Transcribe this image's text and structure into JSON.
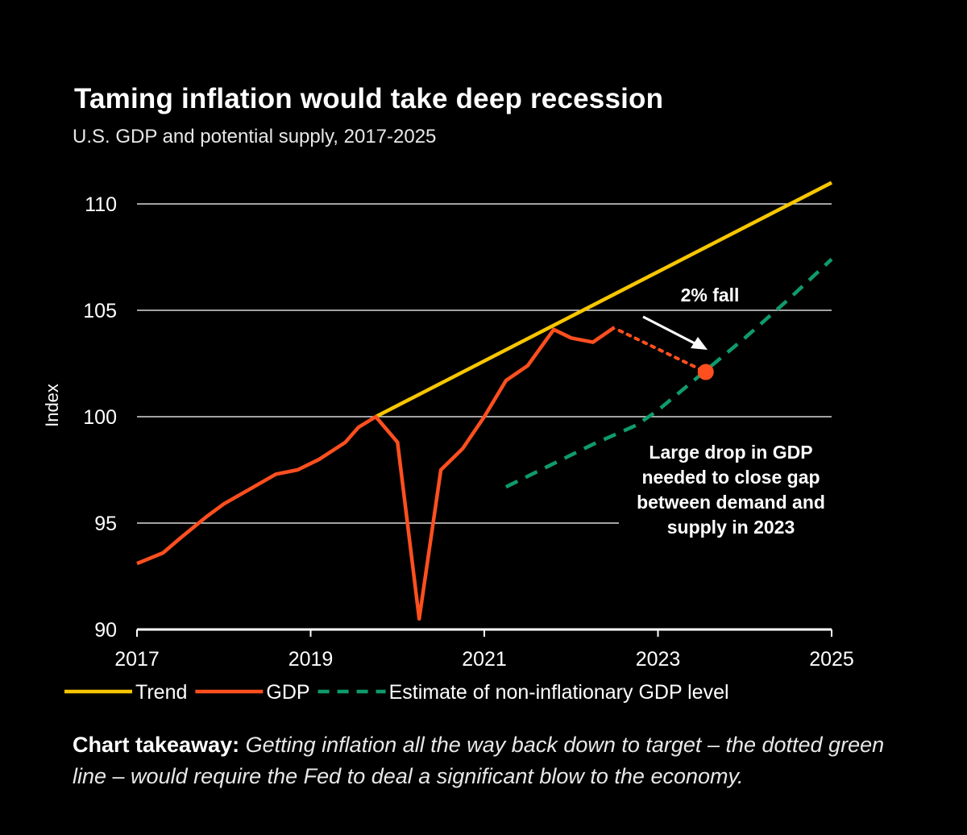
{
  "chart_data": {
    "type": "line",
    "title": "Taming inflation would take deep recession",
    "subtitle": "U.S. GDP and potential supply, 2017-2025",
    "ylabel": "Index",
    "xlabel": "",
    "xlim": [
      2017,
      2025
    ],
    "ylim": [
      90,
      110
    ],
    "yticks": [
      90,
      95,
      100,
      105,
      110
    ],
    "xticks": [
      2017,
      2019,
      2021,
      2023,
      2025
    ],
    "ytick_labels": [
      "90",
      "95",
      "100",
      "105",
      "110"
    ],
    "xtick_labels": [
      "2017",
      "2019",
      "2021",
      "2023",
      "2025"
    ],
    "grid": "horizontal",
    "legend_position": "bottom",
    "series": [
      {
        "name": "Trend",
        "color": "#f7c600",
        "style": "solid",
        "x": [
          2019.75,
          2025
        ],
        "y": [
          100.0,
          111.0
        ]
      },
      {
        "name": "GDP",
        "color": "#ff4f1f",
        "style": "solid",
        "x": [
          2017.0,
          2017.3,
          2017.5,
          2017.8,
          2018.0,
          2018.3,
          2018.6,
          2018.85,
          2019.1,
          2019.4,
          2019.55,
          2019.75,
          2020.0,
          2020.25,
          2020.5,
          2020.75,
          2021.0,
          2021.25,
          2021.5,
          2021.8,
          2022.0,
          2022.25,
          2022.5
        ],
        "y": [
          93.1,
          93.6,
          94.3,
          95.3,
          95.9,
          96.6,
          97.3,
          97.5,
          98.0,
          98.8,
          99.5,
          100.0,
          98.8,
          90.5,
          97.5,
          98.5,
          100.0,
          101.7,
          102.4,
          104.1,
          103.7,
          103.5,
          104.2
        ]
      },
      {
        "name": "Estimate of non-inflationary GDP level",
        "color": "#0f9b6b",
        "style": "dashed",
        "x": [
          2021.25,
          2021.75,
          2022.25,
          2022.75,
          2023.0,
          2023.5,
          2024.0,
          2024.5,
          2025.0
        ],
        "y": [
          96.7,
          97.7,
          98.7,
          99.6,
          100.3,
          102.0,
          103.7,
          105.5,
          107.4
        ]
      }
    ],
    "projection": {
      "color": "#ff4f1f",
      "x": [
        2022.5,
        2023.55
      ],
      "y": [
        104.2,
        102.1
      ]
    },
    "annotations": {
      "fall_label": "2% fall",
      "gap_note": [
        "Large drop in GDP",
        "needed to close gap",
        "between demand and",
        "supply in 2023"
      ]
    }
  },
  "takeaway": {
    "lead": "Chart takeaway:",
    "body": "Getting inflation all the way back down to target – the dotted green line – would require the Fed to deal a significant blow to the economy."
  }
}
